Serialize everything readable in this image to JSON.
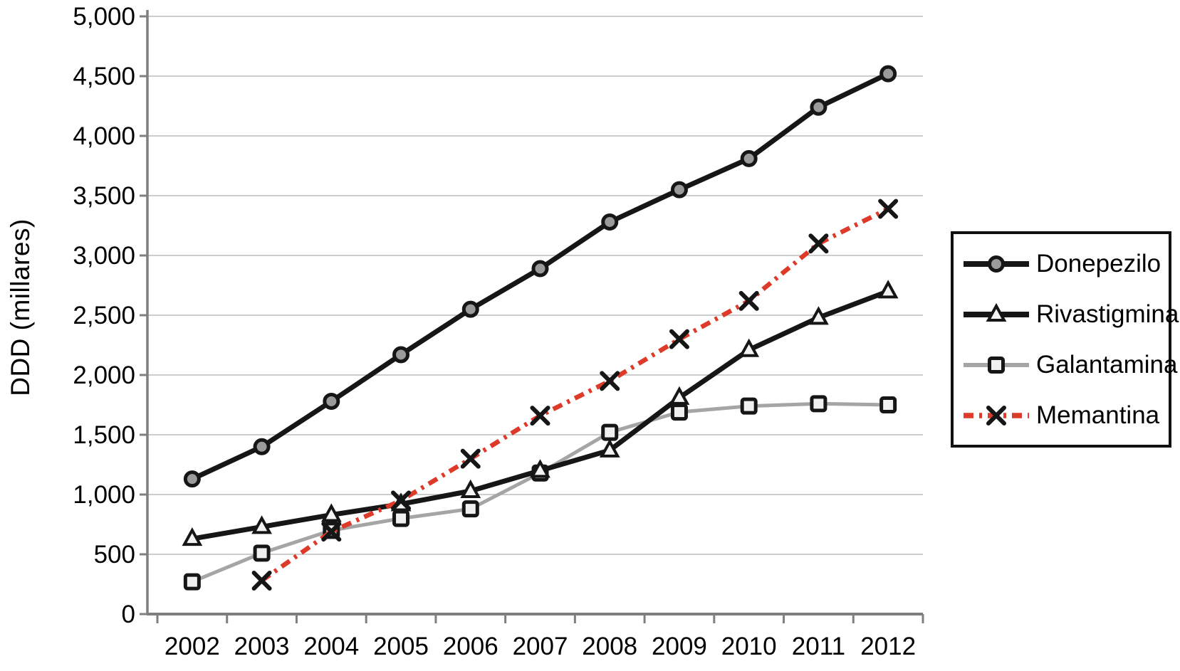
{
  "chart_data": {
    "type": "line",
    "title": "",
    "xlabel": "",
    "ylabel": "DDD (millares)",
    "x": [
      "2002",
      "2003",
      "2004",
      "2005",
      "2006",
      "2007",
      "2008",
      "2009",
      "2010",
      "2011",
      "2012"
    ],
    "ylim": [
      0,
      5000
    ],
    "ytick_step": 500,
    "ytick_labels": [
      "0",
      "500",
      "1,000",
      "1,500",
      "2,000",
      "2,500",
      "3,000",
      "3,500",
      "4,000",
      "4,500",
      "5,000"
    ],
    "grid": true,
    "legend_position": "right-outside",
    "series": [
      {
        "name": "Donepezilo",
        "color": "#161616",
        "line_style": "solid",
        "line_width": 7,
        "marker": "circle",
        "marker_fill": "#9b9b9b",
        "values": [
          1130,
          1400,
          1780,
          2170,
          2550,
          2890,
          3280,
          3550,
          3810,
          4240,
          4520
        ]
      },
      {
        "name": "Rivastigmina",
        "color": "#161616",
        "line_style": "solid",
        "line_width": 7,
        "marker": "triangle",
        "marker_fill": "#f4f4f4",
        "values": [
          630,
          730,
          830,
          920,
          1030,
          1200,
          1370,
          1810,
          2210,
          2480,
          2700
        ]
      },
      {
        "name": "Galantamina",
        "color": "#a5a5a5",
        "line_style": "solid",
        "line_width": 5,
        "marker": "square",
        "marker_fill": "#f0f0f0",
        "values": [
          270,
          510,
          700,
          800,
          880,
          1180,
          1520,
          1690,
          1740,
          1760,
          1750
        ]
      },
      {
        "name": "Memantina",
        "color": "#dd3a29",
        "line_style": "dash-dot",
        "line_width": 6.5,
        "marker": "x",
        "marker_fill": "none",
        "values": [
          null,
          280,
          690,
          950,
          1300,
          1660,
          1950,
          2300,
          2620,
          3100,
          3390
        ]
      }
    ]
  },
  "palette": {
    "gridline": "#cdcdcd",
    "axis": "#7f7f7f",
    "text": "#000000",
    "background": "#ffffff",
    "legend_border": "#111111"
  }
}
